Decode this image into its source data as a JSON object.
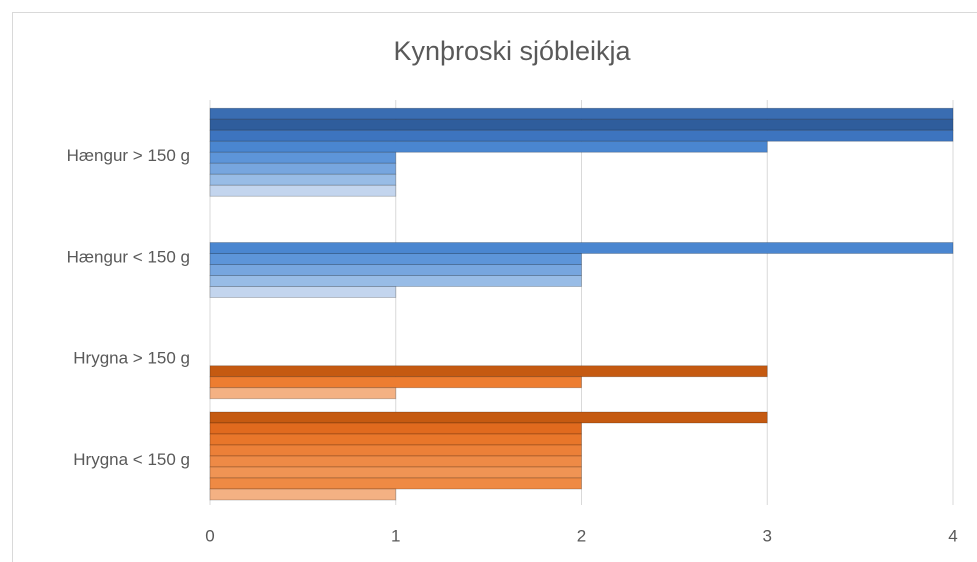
{
  "chart_data": {
    "type": "bar",
    "orientation": "horizontal",
    "title": "Kynþroski sjóbleikja",
    "categories": [
      "Hængur > 150 g",
      "Hængur < 150 g",
      "Hrygna > 150 g",
      "Hrygna < 150 g"
    ],
    "values": [
      [
        4,
        4,
        4,
        3,
        1,
        1,
        1,
        1
      ],
      [
        4,
        2,
        2,
        2,
        1
      ],
      [
        3,
        2,
        1
      ],
      [
        3,
        2,
        2,
        2,
        2,
        2,
        2,
        1
      ]
    ],
    "colors": [
      [
        "#3a6db2",
        "#2f5d9c",
        "#3d74bf",
        "#4a86d0",
        "#5d95d9",
        "#77a6df",
        "#98bce6",
        "#c3d5ee"
      ],
      [
        "#4a86d0",
        "#5d95d9",
        "#77a6df",
        "#98bce6",
        "#c3d5ee"
      ],
      [
        "#c55a11",
        "#ed7d31",
        "#f4b183"
      ],
      [
        "#c55a11",
        "#e06a1e",
        "#e8762a",
        "#ec8038",
        "#ee8a46",
        "#f09454",
        "#ef8a44",
        "#f4b183"
      ]
    ],
    "xlim": [
      0,
      4
    ],
    "xticks": [
      0,
      1,
      2,
      3,
      4
    ],
    "grid": true
  }
}
